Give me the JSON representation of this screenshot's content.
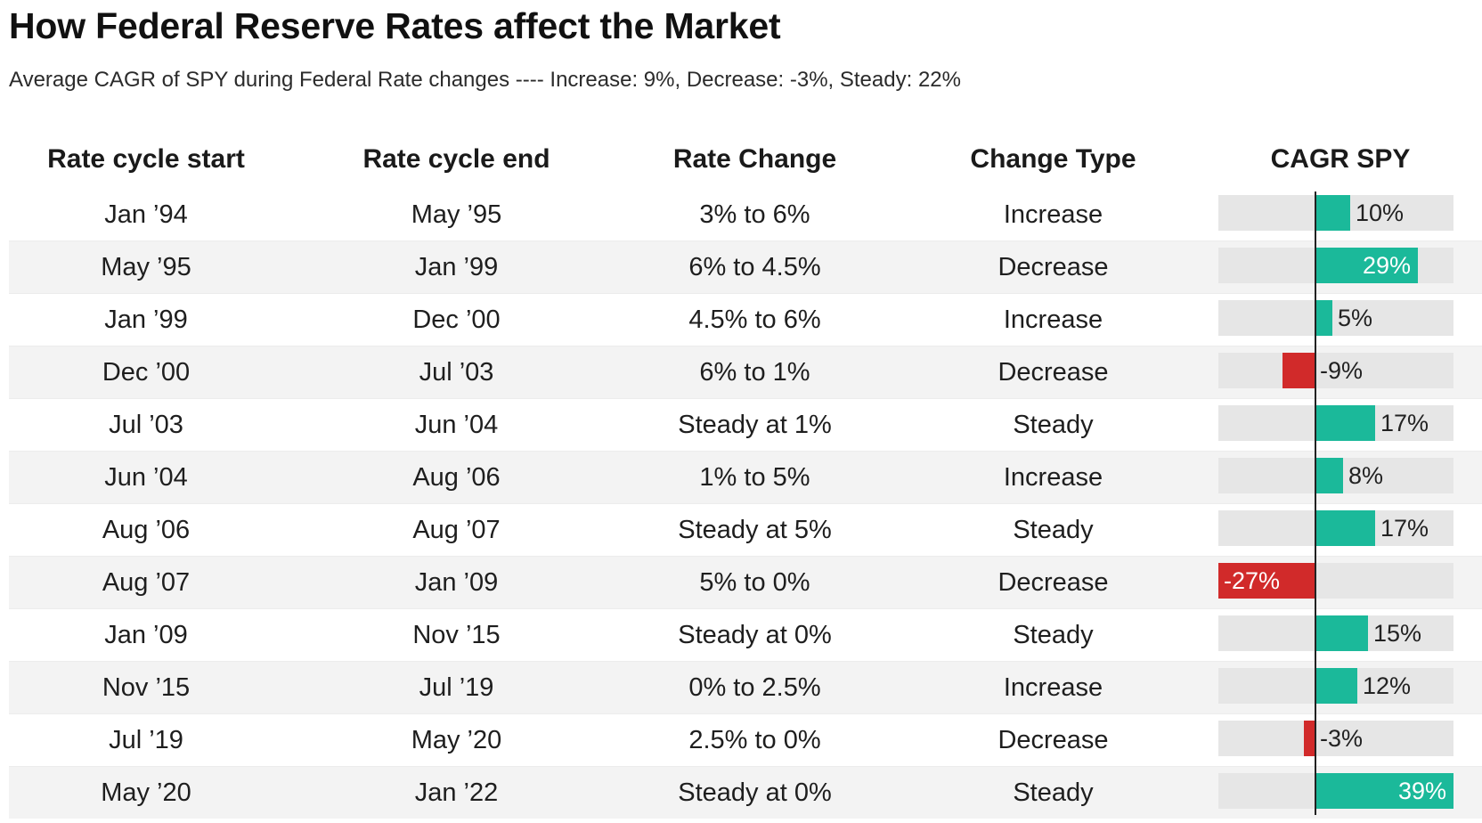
{
  "title": "How Federal Reserve Rates affect the Market",
  "subtitle": "Average CAGR of SPY during Federal Rate changes ---- Increase: 9%, Decrease: -3%, Steady: 22%",
  "headers": [
    "Rate cycle start",
    "Rate cycle end",
    "Rate Change",
    "Change Type",
    "CAGR SPY"
  ],
  "rows": [
    {
      "start": "Jan ’94",
      "end": "May ’95",
      "change": "3% to 6%",
      "type": "Increase",
      "cagr_label": "10%"
    },
    {
      "start": "May ’95",
      "end": "Jan ’99",
      "change": "6% to 4.5%",
      "type": "Decrease",
      "cagr_label": "29%"
    },
    {
      "start": "Jan ’99",
      "end": "Dec ’00",
      "change": "4.5% to 6%",
      "type": "Increase",
      "cagr_label": "5%"
    },
    {
      "start": "Dec ’00",
      "end": "Jul ’03",
      "change": "6% to 1%",
      "type": "Decrease",
      "cagr_label": "-9%"
    },
    {
      "start": "Jul ’03",
      "end": "Jun ’04",
      "change": "Steady at 1%",
      "type": "Steady",
      "cagr_label": "17%"
    },
    {
      "start": "Jun ’04",
      "end": "Aug ’06",
      "change": "1% to 5%",
      "type": "Increase",
      "cagr_label": "8%"
    },
    {
      "start": "Aug ’06",
      "end": "Aug ’07",
      "change": "Steady at 5%",
      "type": "Steady",
      "cagr_label": "17%"
    },
    {
      "start": "Aug ’07",
      "end": "Jan ’09",
      "change": "5% to 0%",
      "type": "Decrease",
      "cagr_label": "-27%"
    },
    {
      "start": "Jan ’09",
      "end": "Nov ’15",
      "change": "Steady at 0%",
      "type": "Steady",
      "cagr_label": "15%"
    },
    {
      "start": "Nov ’15",
      "end": "Jul ’19",
      "change": "0% to 2.5%",
      "type": "Increase",
      "cagr_label": "12%"
    },
    {
      "start": "Jul ’19",
      "end": "May ’20",
      "change": "2.5% to 0%",
      "type": "Decrease",
      "cagr_label": "-3%"
    },
    {
      "start": "May ’20",
      "end": "Jan ’22",
      "change": "Steady at 0%",
      "type": "Steady",
      "cagr_label": "39%"
    }
  ],
  "chart_data": {
    "type": "table",
    "title": "How Federal Reserve Rates affect the Market",
    "subtitle": "Average CAGR of SPY during Federal Rate changes ---- Increase: 9%, Decrease: -3%, Steady: 22%",
    "columns": [
      "Rate cycle start",
      "Rate cycle end",
      "Rate Change",
      "Change Type",
      "CAGR SPY"
    ],
    "bar_column": "CAGR SPY",
    "bar_range": [
      -27,
      39
    ],
    "values": [
      10,
      29,
      5,
      -9,
      17,
      8,
      17,
      -27,
      15,
      12,
      -3,
      39
    ],
    "colors": {
      "positive": "#1bb99a",
      "negative": "#d12a2a",
      "track": "#e6e6e6",
      "row_stripe": "#f3f3f3"
    }
  }
}
